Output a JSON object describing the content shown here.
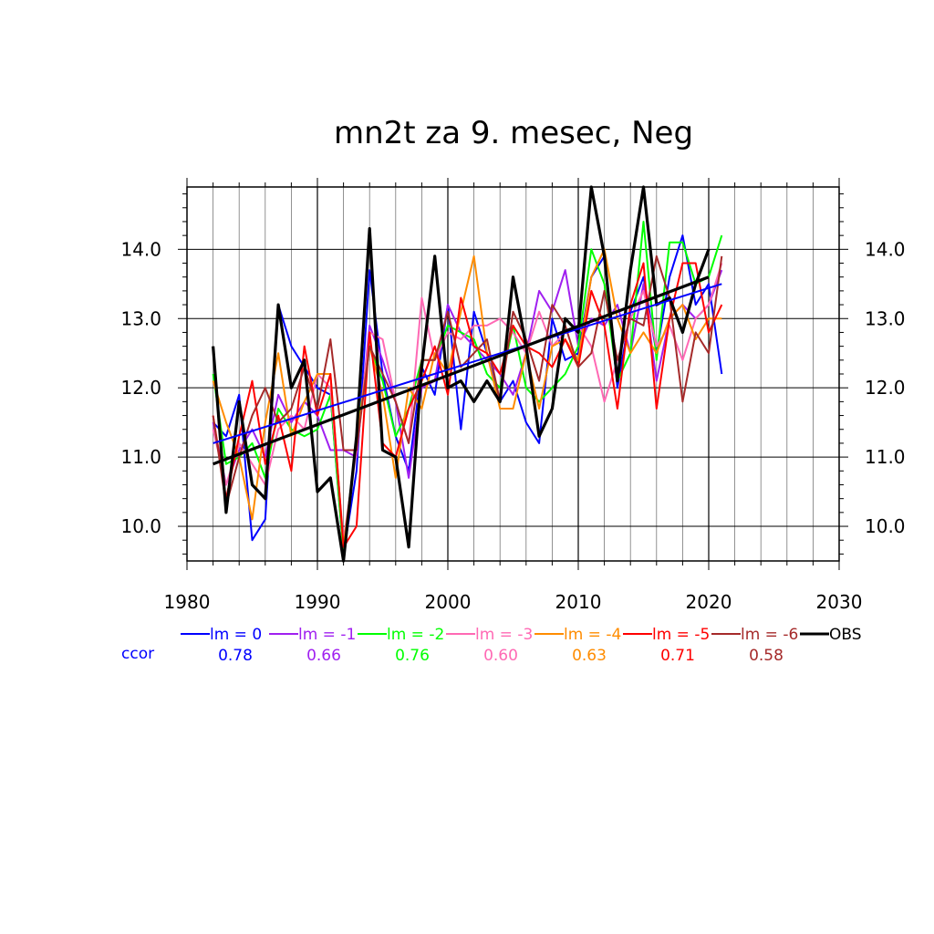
{
  "chart_data": {
    "type": "line",
    "title": "mn2t za 9. mesec, Neg",
    "xlabel": "",
    "ylabel": "",
    "xlim": [
      1980,
      2030
    ],
    "ylim": [
      9.5,
      14.9
    ],
    "x_ticks": [
      1980,
      1990,
      2000,
      2010,
      2020,
      2030
    ],
    "x_tick_labels": [
      "1980",
      "1990",
      "2000",
      "2010",
      "2020",
      "2030"
    ],
    "y_ticks": [
      10,
      11,
      12,
      13,
      14
    ],
    "y_tick_labels": [
      "10.0",
      "11.0",
      "12.0",
      "13.0",
      "14.0"
    ],
    "grid": true,
    "ccor_label": "ccor",
    "series": [
      {
        "name": "lm = 0",
        "color": "#0000ff",
        "ccor": "0.78",
        "start_year": 1982,
        "values": [
          11.5,
          11.3,
          11.9,
          9.8,
          10.1,
          13.2,
          12.6,
          12.3,
          12.0,
          11.9,
          9.6,
          10.8,
          13.7,
          12.2,
          11.3,
          10.8,
          12.3,
          11.9,
          13.2,
          11.4,
          13.1,
          12.5,
          11.8,
          12.1,
          11.5,
          11.2,
          13.0,
          12.4,
          12.5,
          13.6,
          13.9,
          12.0,
          13.1,
          13.6,
          12.5,
          13.6,
          14.2,
          13.2,
          13.5,
          12.2
        ],
        "trend": [
          11.2,
          13.5
        ]
      },
      {
        "name": "lm = -1",
        "color": "#a020f0",
        "ccor": "0.66",
        "start_year": 1982,
        "values": [
          11.5,
          10.6,
          11.1,
          11.4,
          11.0,
          11.9,
          11.5,
          11.8,
          11.6,
          11.1,
          11.1,
          11.0,
          12.9,
          12.4,
          11.8,
          10.7,
          12.0,
          12.1,
          13.2,
          12.8,
          12.6,
          12.4,
          12.2,
          11.9,
          12.5,
          13.4,
          13.1,
          13.7,
          12.6,
          13.0,
          12.9,
          13.2,
          12.5,
          13.5,
          12.1,
          13.0,
          13.2,
          13.0,
          13.2,
          13.7
        ],
        "trend": null
      },
      {
        "name": "lm = -2",
        "color": "#00ff00",
        "ccor": "0.76",
        "start_year": 1982,
        "values": [
          12.2,
          10.9,
          11.0,
          11.2,
          10.7,
          11.7,
          11.4,
          11.3,
          11.4,
          11.9,
          9.6,
          11.3,
          12.6,
          12.1,
          11.3,
          11.7,
          12.4,
          12.4,
          12.9,
          12.8,
          12.7,
          12.2,
          12.0,
          12.9,
          12.0,
          11.8,
          12.0,
          12.2,
          12.6,
          14.0,
          13.5,
          12.1,
          12.5,
          14.4,
          12.4,
          14.1,
          14.1,
          13.5,
          13.6,
          14.2
        ],
        "trend": null
      },
      {
        "name": "lm = -3",
        "color": "#ff69b4",
        "ccor": "0.60",
        "start_year": 1982,
        "values": [
          11.4,
          10.6,
          11.2,
          10.9,
          10.6,
          11.4,
          11.6,
          11.4,
          12.2,
          12.0,
          9.8,
          11.1,
          12.8,
          12.7,
          11.8,
          11.2,
          13.3,
          12.4,
          12.8,
          12.7,
          12.9,
          12.9,
          13.0,
          12.8,
          12.5,
          13.1,
          12.6,
          12.8,
          12.9,
          12.6,
          11.8,
          12.4,
          13.0,
          13.4,
          12.6,
          12.9,
          12.4,
          13.0,
          13.2,
          13.8
        ],
        "trend": null
      },
      {
        "name": "lm = -4",
        "color": "#ff8c00",
        "ccor": "0.63",
        "start_year": 1982,
        "values": [
          12.1,
          11.5,
          11.0,
          10.1,
          11.5,
          12.5,
          11.3,
          11.8,
          12.2,
          12.2,
          9.7,
          11.2,
          12.6,
          11.9,
          10.7,
          12.0,
          11.7,
          12.5,
          12.2,
          13.1,
          13.9,
          12.5,
          11.7,
          11.7,
          12.5,
          11.7,
          12.6,
          12.7,
          12.4,
          13.6,
          14.0,
          13.0,
          12.5,
          12.8,
          12.5,
          13.0,
          13.2,
          12.7,
          13.0,
          13.0
        ],
        "trend": null
      },
      {
        "name": "lm = -5",
        "color": "#ff0000",
        "ccor": "0.71",
        "start_year": 1982,
        "values": [
          11.6,
          10.4,
          11.3,
          12.1,
          10.9,
          11.6,
          10.8,
          12.6,
          11.6,
          12.2,
          9.7,
          10.0,
          12.8,
          11.2,
          11.0,
          11.7,
          12.1,
          12.6,
          11.9,
          13.3,
          12.6,
          12.5,
          12.2,
          12.9,
          12.6,
          12.5,
          12.3,
          12.7,
          12.3,
          13.4,
          12.9,
          11.7,
          13.2,
          13.8,
          11.7,
          13.0,
          13.8,
          13.8,
          12.8,
          13.2
        ],
        "trend": null
      },
      {
        "name": "lm = -6",
        "color": "#a52a2a",
        "ccor": "0.58",
        "start_year": 1982,
        "values": [
          11.6,
          10.3,
          11.0,
          11.6,
          12.0,
          11.5,
          11.7,
          12.3,
          11.7,
          12.7,
          11.1,
          11.1,
          12.6,
          12.2,
          11.8,
          11.2,
          12.4,
          12.4,
          13.1,
          12.3,
          12.5,
          12.7,
          11.8,
          13.1,
          12.7,
          12.1,
          13.2,
          12.9,
          12.3,
          12.5,
          13.4,
          12.4,
          13.0,
          12.9,
          13.9,
          13.3,
          11.8,
          12.8,
          12.5,
          13.9
        ],
        "trend": null
      },
      {
        "name": "OBS",
        "color": "#000000",
        "ccor": "",
        "start_year": 1982,
        "values": [
          12.6,
          10.2,
          11.8,
          10.6,
          10.4,
          13.2,
          12.0,
          12.4,
          10.5,
          10.7,
          9.5,
          11.3,
          14.3,
          11.1,
          11.0,
          9.7,
          12.3,
          13.9,
          12.0,
          12.1,
          11.8,
          12.1,
          11.8,
          13.6,
          12.6,
          11.3,
          11.7,
          13.0,
          12.8,
          14.9,
          13.9,
          12.1,
          13.7,
          14.9,
          13.2,
          13.3,
          12.8,
          13.5,
          14.0
        ],
        "trend": [
          10.9,
          13.6
        ]
      }
    ]
  }
}
